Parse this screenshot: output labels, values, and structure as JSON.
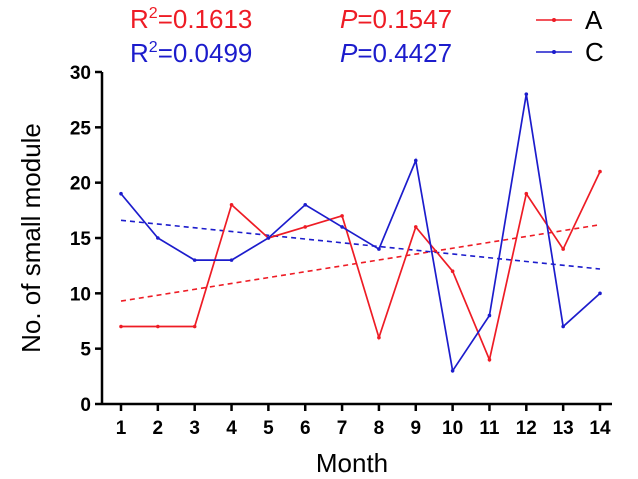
{
  "chart_data": {
    "type": "line",
    "xlabel": "Month",
    "ylabel": "No. of small module",
    "ylim": [
      0,
      30
    ],
    "y_ticks": [
      0,
      5,
      10,
      15,
      20,
      25,
      30
    ],
    "x": [
      1,
      2,
      3,
      4,
      5,
      6,
      7,
      8,
      9,
      10,
      11,
      12,
      13,
      14
    ],
    "x_tick_labels": [
      "1",
      "2",
      "3",
      "4",
      "5",
      "6",
      "7",
      "8",
      "9",
      "10",
      "11",
      "12",
      "13",
      "14"
    ],
    "series": [
      {
        "name": "A",
        "color": "#ee1c25",
        "values": [
          7,
          7,
          7,
          18,
          15,
          16,
          17,
          6,
          16,
          12,
          4,
          19,
          14,
          21
        ],
        "trend": {
          "start": 9.3,
          "end": 16.2,
          "style": "dashed"
        },
        "stats": {
          "r2_prefix": "R",
          "r2_exp": "2",
          "r2_value": "=0.1613",
          "p_prefix": "P",
          "p_value": "=0.1547"
        }
      },
      {
        "name": "C",
        "color": "#1c1ccc",
        "values": [
          19,
          15,
          13,
          13,
          15,
          18,
          16,
          14,
          22,
          3,
          8,
          28,
          7,
          10
        ],
        "trend": {
          "start": 16.6,
          "end": 12.2,
          "style": "dashed"
        },
        "stats": {
          "r2_prefix": "R",
          "r2_exp": "2",
          "r2_value": "=0.0499",
          "p_prefix": "P",
          "p_value": "=0.4427"
        }
      }
    ],
    "legend_position": "top-right",
    "grid": false
  }
}
